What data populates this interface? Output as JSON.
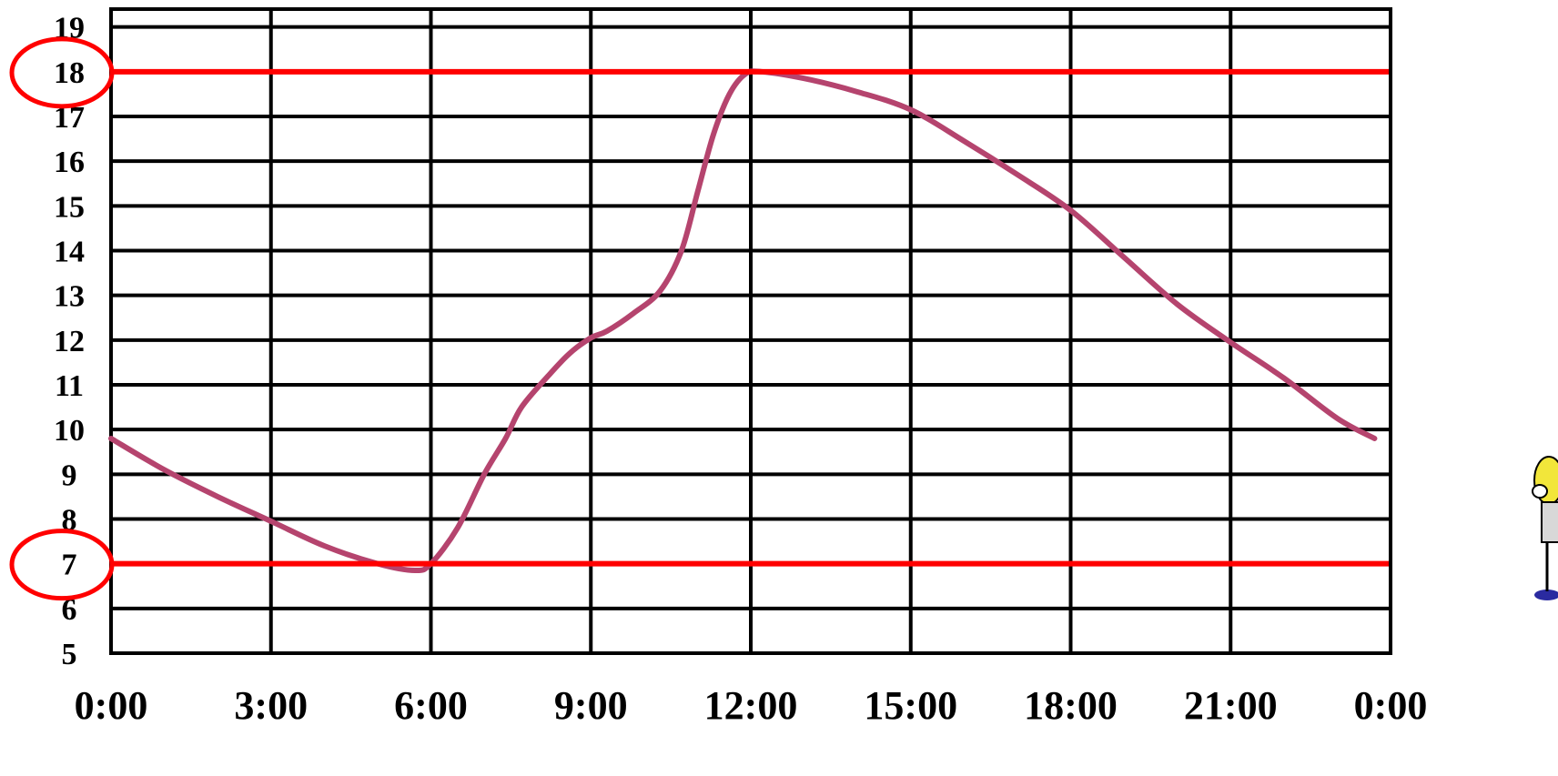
{
  "chart_data": {
    "type": "line",
    "title": "",
    "xlabel": "",
    "ylabel": "",
    "x_tick_labels": [
      "0:00",
      "3:00",
      "6:00",
      "9:00",
      "12:00",
      "15:00",
      "18:00",
      "21:00",
      "0:00"
    ],
    "y_tick_labels": [
      "5",
      "6",
      "7",
      "8",
      "9",
      "10",
      "11",
      "12",
      "13",
      "14",
      "15",
      "16",
      "17",
      "18",
      "19"
    ],
    "xlim": [
      0,
      24
    ],
    "ylim": [
      5,
      19.4
    ],
    "grid": true,
    "series": [
      {
        "color": "#b5446e",
        "x": [
          0,
          1,
          2,
          3,
          4,
          5,
          5.7,
          6,
          6.5,
          7.0,
          7.4,
          7.7,
          8.2,
          8.6,
          9.0,
          9.3,
          9.8,
          10.3,
          10.7,
          11.0,
          11.3,
          11.6,
          11.9,
          12.2,
          13,
          14,
          15,
          16,
          17,
          18,
          19,
          20,
          21,
          22,
          23,
          23.7
        ],
        "y": [
          9.8,
          9.1,
          8.5,
          7.95,
          7.4,
          7.0,
          6.85,
          7.0,
          7.8,
          9.0,
          9.8,
          10.5,
          11.2,
          11.7,
          12.05,
          12.2,
          12.6,
          13.1,
          14.0,
          15.3,
          16.6,
          17.5,
          17.95,
          18.0,
          17.85,
          17.55,
          17.15,
          16.45,
          15.7,
          14.9,
          13.85,
          12.8,
          11.95,
          11.15,
          10.25,
          9.8
        ]
      }
    ],
    "reference_lines": [
      {
        "y": 18,
        "color": "#ff0000"
      },
      {
        "y": 7,
        "color": "#ff0000"
      }
    ],
    "highlighted_ticks": [
      "18",
      "7"
    ],
    "annotation_color": "#ff0000"
  }
}
